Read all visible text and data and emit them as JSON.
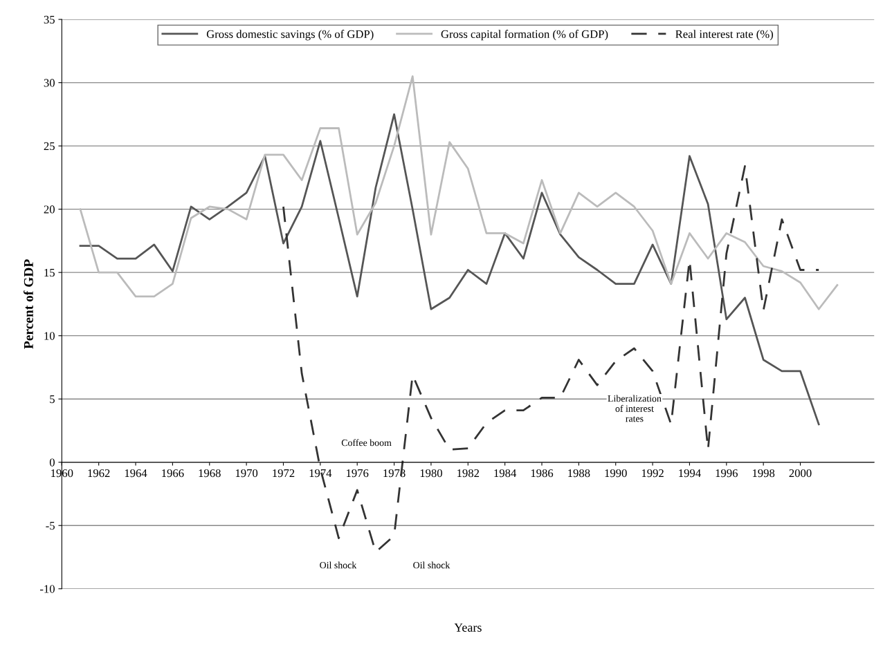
{
  "chart_data": {
    "type": "line",
    "xlabel": "Years",
    "ylabel": "Percent of GDP",
    "x": [
      1961,
      1962,
      1963,
      1964,
      1965,
      1966,
      1967,
      1968,
      1969,
      1970,
      1971,
      1972,
      1973,
      1974,
      1975,
      1976,
      1977,
      1978,
      1979,
      1980,
      1981,
      1982,
      1983,
      1984,
      1985,
      1986,
      1987,
      1988,
      1989,
      1990,
      1991,
      1992,
      1993,
      1994,
      1995,
      1996,
      1997,
      1998,
      1999,
      2000,
      2001,
      2002
    ],
    "series": [
      {
        "name": "Gross domestic savings (% of GDP)",
        "color": "#555555",
        "line_style": "solid",
        "values": [
          17.1,
          17.1,
          16.1,
          16.1,
          17.2,
          15.1,
          20.2,
          19.2,
          20.2,
          21.3,
          24.2,
          17.3,
          20.2,
          25.4,
          19.3,
          13.1,
          21.7,
          27.5,
          20.0,
          12.1,
          13.0,
          15.2,
          14.1,
          18.1,
          16.1,
          21.3,
          18.0,
          16.2,
          15.2,
          14.1,
          14.1,
          17.2,
          14.1,
          24.2,
          20.4,
          11.3,
          13.0,
          8.1,
          7.2,
          7.2,
          3.0,
          null
        ]
      },
      {
        "name": "Gross capital formation (% of GDP)",
        "color": "#bbbbbb",
        "line_style": "solid",
        "values": [
          20.0,
          15.0,
          15.0,
          13.1,
          13.1,
          14.1,
          19.3,
          20.2,
          20.0,
          19.2,
          24.3,
          24.3,
          22.3,
          26.4,
          26.4,
          18.0,
          20.5,
          25.0,
          30.5,
          18.0,
          25.3,
          23.2,
          18.1,
          18.1,
          17.3,
          22.3,
          18.1,
          21.3,
          20.2,
          21.3,
          20.2,
          18.3,
          14.1,
          18.1,
          16.1,
          18.1,
          17.4,
          15.5,
          15.1,
          14.2,
          12.1,
          14.0
        ]
      },
      {
        "name": "Real interest rate (%)",
        "color": "#333333",
        "line_style": "dashed",
        "values": [
          null,
          null,
          null,
          null,
          null,
          null,
          null,
          null,
          null,
          null,
          null,
          20.2,
          7.0,
          -0.5,
          -6.0,
          -2.2,
          -7.1,
          -5.8,
          6.9,
          3.5,
          1.0,
          1.1,
          3.1,
          4.1,
          4.1,
          5.1,
          5.1,
          8.1,
          6.1,
          8.0,
          9.0,
          7.2,
          3.0,
          16.0,
          1.0,
          16.5,
          23.4,
          12.0,
          19.2,
          15.2,
          15.2,
          null
        ]
      }
    ],
    "xlim": [
      1960,
      2004
    ],
    "xticks": [
      1960,
      1962,
      1964,
      1966,
      1968,
      1970,
      1972,
      1974,
      1976,
      1978,
      1980,
      1982,
      1984,
      1986,
      1988,
      1990,
      1992,
      1994,
      1996,
      1998,
      2000
    ],
    "ylim": [
      -10,
      35
    ],
    "yticks": [
      -10,
      -5,
      0,
      5,
      10,
      15,
      20,
      25,
      30,
      35
    ],
    "grid": "y",
    "legend": "top",
    "marker": "none",
    "annotations": [
      "Oil shock",
      "Coffee boom",
      "Oil shock",
      "Liberalization\nof interest\nrates"
    ]
  }
}
